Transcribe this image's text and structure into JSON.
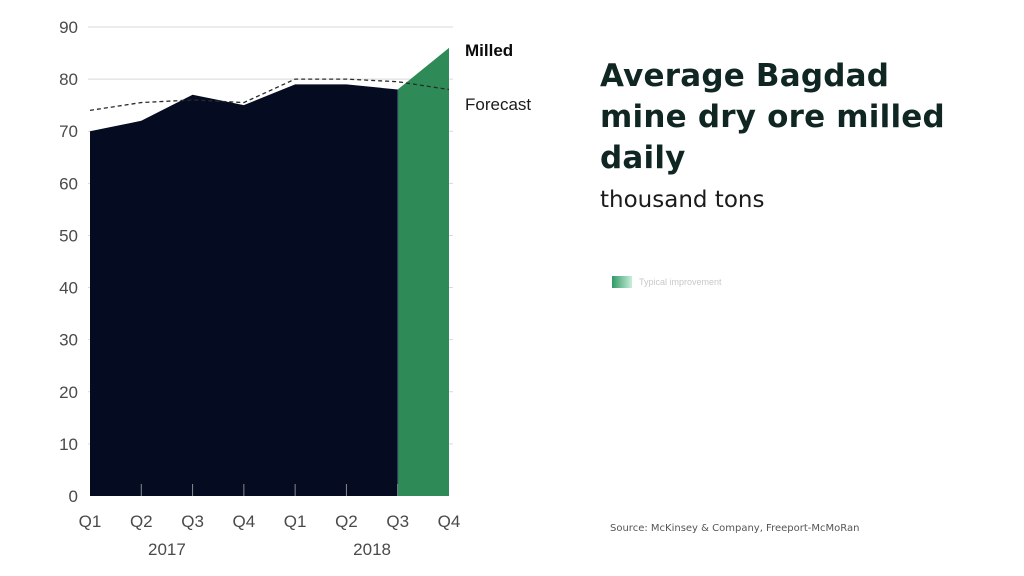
{
  "title": "Average Bagdad mine dry ore milled daily",
  "subtitle": "thousand tons",
  "legend": {
    "label": "Typical improvement"
  },
  "source": "Source: McKinsey & Company, Freeport-McMoRan",
  "colors": {
    "milled": "#050c22",
    "improvement": "#2e8b57",
    "forecast": "#2a2a2a",
    "grid": "#d9d9d9"
  },
  "chart_data": {
    "type": "area",
    "categories": [
      "Q1",
      "Q2",
      "Q3",
      "Q4",
      "Q1",
      "Q2",
      "Q3",
      "Q4"
    ],
    "year_labels": [
      {
        "label": "2017",
        "start_index": 0,
        "end_index": 3
      },
      {
        "label": "2018",
        "start_index": 4,
        "end_index": 7
      }
    ],
    "ylim": [
      0,
      90
    ],
    "yticks": [
      0,
      10,
      20,
      30,
      40,
      50,
      60,
      70,
      80,
      90
    ],
    "grid": true,
    "series": [
      {
        "name": "Milled",
        "values": [
          70,
          72,
          77,
          75,
          79,
          79,
          78,
          86
        ],
        "style": "filled-area"
      },
      {
        "name": "Forecast",
        "values": [
          74,
          75.5,
          76,
          75.5,
          80,
          80,
          79.5,
          78
        ],
        "style": "dashed-line"
      }
    ],
    "highlight": {
      "from_index": 6,
      "to_index": 7,
      "label": "Typical improvement"
    }
  }
}
